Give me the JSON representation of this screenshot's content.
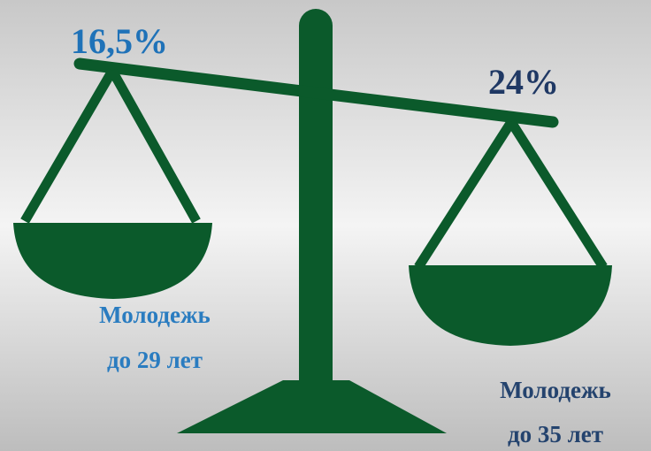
{
  "left": {
    "value": "16,5%",
    "label": [
      "Молодежь",
      "до 29 лет"
    ]
  },
  "right": {
    "value": "24%",
    "label": [
      "Молодежь",
      "до 35 лет"
    ]
  }
}
